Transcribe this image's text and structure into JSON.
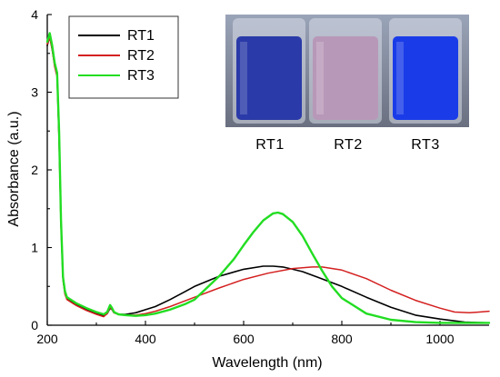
{
  "chart_data": {
    "type": "line",
    "title": "",
    "xlabel": "Wavelength (nm)",
    "ylabel": "Absorbance (a.u.)",
    "xlim": [
      200,
      1100
    ],
    "ylim": [
      0,
      4
    ],
    "xticks": [
      200,
      400,
      600,
      800,
      1000
    ],
    "yticks": [
      0,
      1,
      2,
      3,
      4
    ],
    "legend_position": "top-left",
    "series": [
      {
        "name": "RT1",
        "color": "#000000",
        "x": [
          200,
          205,
          210,
          215,
          220,
          224,
          228,
          232,
          236,
          240,
          250,
          260,
          280,
          300,
          315,
          322,
          328,
          332,
          336,
          345,
          360,
          380,
          400,
          420,
          450,
          480,
          500,
          550,
          600,
          640,
          660,
          680,
          700,
          720,
          750,
          800,
          850,
          900,
          950,
          1000,
          1050,
          1100
        ],
        "y": [
          3.6,
          3.72,
          3.55,
          3.35,
          3.22,
          2.4,
          1.3,
          0.6,
          0.42,
          0.34,
          0.3,
          0.26,
          0.2,
          0.15,
          0.12,
          0.15,
          0.22,
          0.2,
          0.16,
          0.14,
          0.14,
          0.16,
          0.2,
          0.24,
          0.33,
          0.43,
          0.5,
          0.63,
          0.72,
          0.76,
          0.76,
          0.75,
          0.72,
          0.69,
          0.62,
          0.5,
          0.36,
          0.23,
          0.13,
          0.08,
          0.04,
          0.03
        ]
      },
      {
        "name": "RT2",
        "color": "#d42020",
        "x": [
          200,
          205,
          210,
          215,
          220,
          224,
          228,
          232,
          236,
          240,
          250,
          260,
          280,
          300,
          315,
          322,
          328,
          332,
          336,
          345,
          360,
          380,
          400,
          420,
          450,
          500,
          550,
          600,
          650,
          700,
          740,
          760,
          800,
          850,
          900,
          950,
          1000,
          1030,
          1060,
          1080,
          1100
        ],
        "y": [
          3.62,
          3.7,
          3.55,
          3.33,
          3.2,
          2.35,
          1.28,
          0.58,
          0.4,
          0.33,
          0.29,
          0.25,
          0.19,
          0.14,
          0.11,
          0.15,
          0.23,
          0.2,
          0.16,
          0.14,
          0.13,
          0.13,
          0.15,
          0.18,
          0.24,
          0.36,
          0.48,
          0.59,
          0.67,
          0.73,
          0.75,
          0.75,
          0.71,
          0.6,
          0.45,
          0.32,
          0.22,
          0.17,
          0.16,
          0.17,
          0.18
        ]
      },
      {
        "name": "RT3",
        "color": "#22dd22",
        "x": [
          200,
          205,
          210,
          215,
          220,
          224,
          228,
          232,
          236,
          240,
          250,
          260,
          280,
          300,
          315,
          322,
          328,
          332,
          336,
          345,
          360,
          380,
          400,
          420,
          450,
          480,
          500,
          520,
          550,
          580,
          600,
          620,
          640,
          660,
          670,
          680,
          700,
          720,
          740,
          760,
          780,
          800,
          850,
          900,
          950,
          1000,
          1050,
          1100
        ],
        "y": [
          3.65,
          3.76,
          3.6,
          3.38,
          3.25,
          2.5,
          1.35,
          0.62,
          0.44,
          0.36,
          0.32,
          0.28,
          0.22,
          0.17,
          0.14,
          0.17,
          0.26,
          0.22,
          0.17,
          0.14,
          0.13,
          0.12,
          0.13,
          0.15,
          0.2,
          0.27,
          0.33,
          0.45,
          0.63,
          0.85,
          1.03,
          1.2,
          1.35,
          1.44,
          1.45,
          1.43,
          1.33,
          1.15,
          0.92,
          0.7,
          0.5,
          0.35,
          0.15,
          0.07,
          0.04,
          0.03,
          0.03,
          0.03
        ]
      }
    ]
  },
  "inset": {
    "labels": [
      "RT1",
      "RT2",
      "RT3"
    ],
    "vial_colors": [
      "#2a3aa8",
      "#b898b8",
      "#1a3ce8"
    ]
  }
}
